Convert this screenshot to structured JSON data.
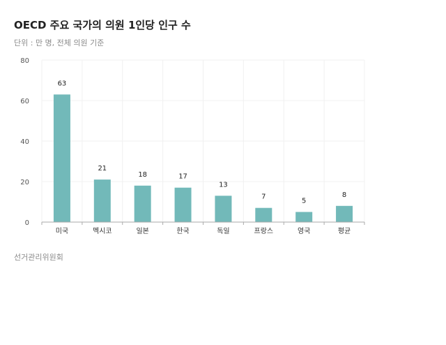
{
  "header": {
    "title": "OECD 주요 국가의 의원 1인당 인구 수",
    "subtitle": "단위 : 만 명, 전체 의원 기준"
  },
  "footer": {
    "source": "선거관리위원회"
  },
  "colors": {
    "bar": "#72b9b9",
    "grid": "#f0f0f0",
    "axis": "#aaaaaa"
  },
  "chart_data": {
    "type": "bar",
    "title": "OECD 주요 국가의 의원 1인당 인구 수",
    "subtitle": "단위 : 만 명, 전체 의원 기준",
    "xlabel": "",
    "ylabel": "",
    "categories": [
      "미국",
      "멕시코",
      "일본",
      "한국",
      "독일",
      "프랑스",
      "영국",
      "평균"
    ],
    "values": [
      63,
      21,
      18,
      17,
      13,
      7,
      5,
      8
    ],
    "ylim": [
      0,
      80
    ],
    "yticks": [
      0,
      20,
      40,
      60,
      80
    ],
    "grid": true,
    "legend": "none"
  }
}
